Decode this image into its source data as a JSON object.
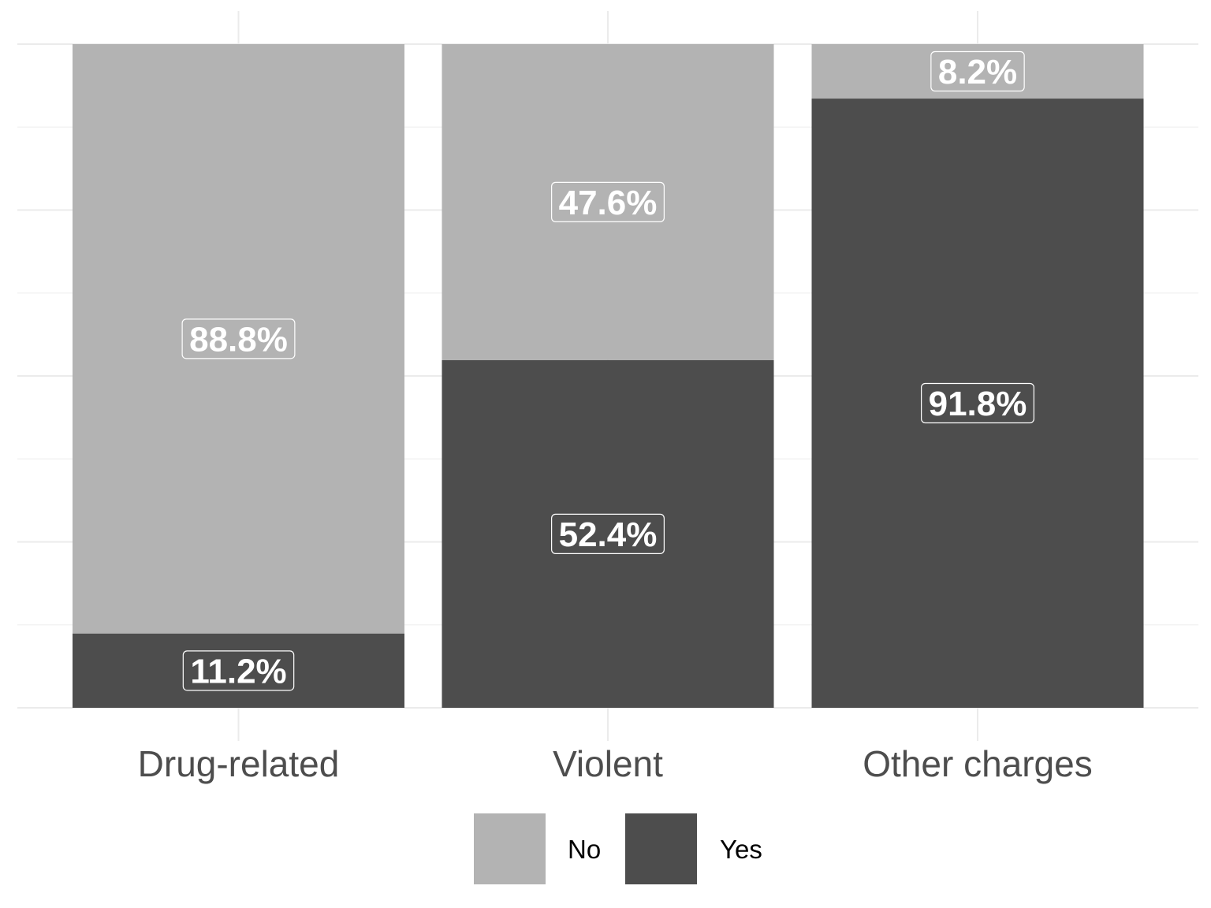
{
  "chart_data": {
    "type": "bar",
    "stacked": true,
    "orientation": "vertical",
    "categories": [
      "Drug-related",
      "Violent",
      "Other charges"
    ],
    "series": [
      {
        "name": "No",
        "color": "#b3b3b3",
        "values": [
          88.8,
          47.6,
          8.2
        ],
        "labels": [
          "88.8%",
          "47.6%",
          "8.2%"
        ]
      },
      {
        "name": "Yes",
        "color": "#4d4d4d",
        "values": [
          11.2,
          52.4,
          91.8
        ],
        "labels": [
          "11.2%",
          "52.4%",
          "91.8%"
        ]
      }
    ],
    "ylim": [
      0,
      100
    ],
    "grid": true,
    "legend": {
      "position": "bottom",
      "entries": [
        "No",
        "Yes"
      ]
    }
  }
}
